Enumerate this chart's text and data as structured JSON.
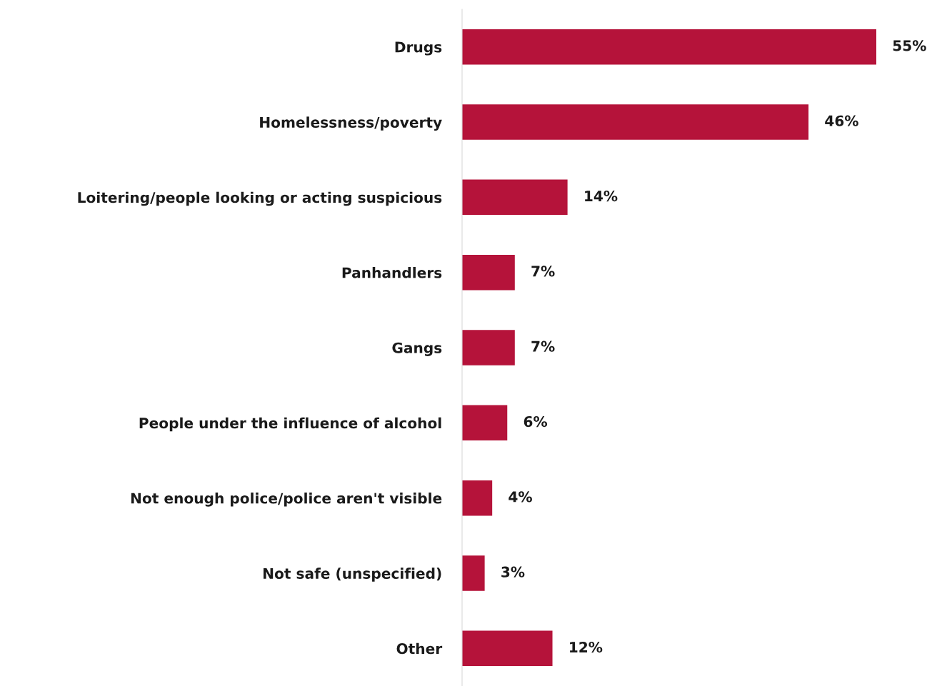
{
  "chart_data": {
    "type": "bar",
    "orientation": "horizontal",
    "categories": [
      "Drugs",
      "Homelessness/poverty",
      "Loitering/people looking or acting suspicious",
      "Panhandlers",
      "Gangs",
      "People under the influence of alcohol",
      "Not enough police/police aren't visible",
      "Not safe (unspecified)",
      "Other"
    ],
    "values": [
      55,
      46,
      14,
      7,
      7,
      6,
      4,
      3,
      12
    ],
    "value_labels": [
      "55%",
      "46%",
      "14%",
      "7%",
      "7%",
      "6%",
      "4%",
      "3%",
      "12%"
    ],
    "color": "#b5133a",
    "grid": false,
    "legend": false
  }
}
